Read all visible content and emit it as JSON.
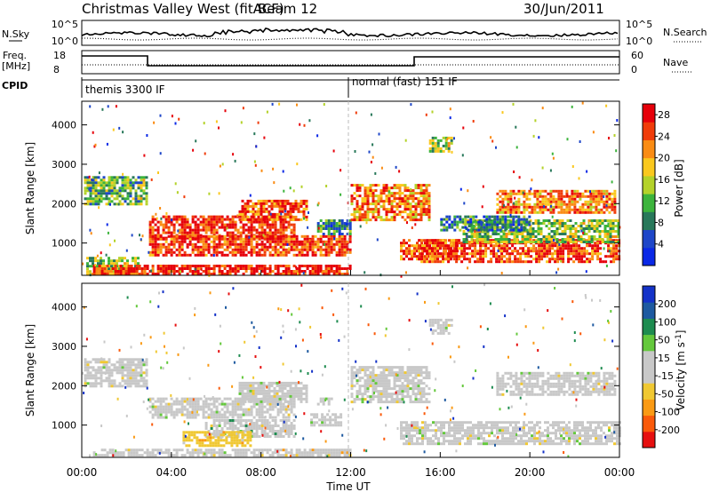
{
  "header": {
    "title": "Christmas Valley West (fitACF)",
    "beam": "Beam 12",
    "date": "30/Jun/2011"
  },
  "panels": {
    "nsky": {
      "label": "N.Sky",
      "left_ticks": [
        "10^5",
        "10^0"
      ],
      "right_ticks": [
        "10^5",
        "10^0"
      ],
      "right_label": "N.Search"
    },
    "freq": {
      "label_line1": "Freq.",
      "label_line2": "[MHz]",
      "left_ticks": [
        "18",
        "8"
      ],
      "right_ticks": [
        "60",
        "0"
      ],
      "right_label": "Nave"
    },
    "cpid": {
      "label": "CPID",
      "segments": [
        "themis 3300 IF",
        "normal (fast) 151 IF"
      ]
    }
  },
  "colors": {
    "power": [
      "#0a28e6",
      "#1e46c8",
      "#28785a",
      "#3cb43c",
      "#b4d22a",
      "#fac81e",
      "#fa8c14",
      "#f03c0a",
      "#e6000a"
    ],
    "velocity": [
      "#e61010",
      "#fa5a0a",
      "#fa9a14",
      "#f0c832",
      "#c8c8c8",
      "#c8c8c8",
      "#64c83c",
      "#1e8c50",
      "#1e5aa0",
      "#1432c8"
    ],
    "ground_scatter": "#bebebe"
  },
  "chart_data": [
    {
      "type": "heatmap",
      "name": "power",
      "ylabel": "Slant Range [km]",
      "yticks": [
        1000,
        2000,
        3000,
        4000
      ],
      "ylim": [
        180,
        4600
      ],
      "xlabel": "Time UT",
      "xticks": [
        "00:00",
        "04:00",
        "08:00",
        "12:00",
        "16:00",
        "20:00",
        "00:00"
      ],
      "xlim_hours": [
        0,
        24
      ],
      "colorbar": {
        "label": "Power [dB]",
        "ticks": [
          4,
          8,
          12,
          16,
          20,
          24,
          28
        ],
        "range": [
          0,
          30
        ]
      },
      "regions": [
        {
          "t": [
            0.1,
            2.9
          ],
          "r": [
            2000,
            2700
          ],
          "v": 12
        },
        {
          "t": [
            0.2,
            2.5
          ],
          "r": [
            200,
            650
          ],
          "v": 14
        },
        {
          "t": [
            3.0,
            9.5
          ],
          "r": [
            1150,
            1700
          ],
          "v": 27
        },
        {
          "t": [
            7.0,
            10.0
          ],
          "r": [
            1600,
            2100
          ],
          "v": 24
        },
        {
          "t": [
            3.0,
            12.0
          ],
          "r": [
            700,
            1200
          ],
          "v": 26
        },
        {
          "t": [
            0.5,
            12.0
          ],
          "r": [
            220,
            450
          ],
          "v": 28
        },
        {
          "t": [
            10.5,
            12.0
          ],
          "r": [
            1200,
            1600
          ],
          "v": 10
        },
        {
          "t": [
            12.0,
            15.5
          ],
          "r": [
            1600,
            2500
          ],
          "v": 22
        },
        {
          "t": [
            14.2,
            16.8
          ],
          "r": [
            600,
            1100
          ],
          "v": 24
        },
        {
          "t": [
            15.0,
            24.0
          ],
          "r": [
            500,
            1100
          ],
          "v": 26
        },
        {
          "t": [
            17.0,
            24.0
          ],
          "r": [
            1000,
            1600
          ],
          "v": 14
        },
        {
          "t": [
            18.5,
            23.8
          ],
          "r": [
            1800,
            2350
          ],
          "v": 22
        },
        {
          "t": [
            15.5,
            16.5
          ],
          "r": [
            3300,
            3700
          ],
          "v": 14
        },
        {
          "t": [
            16.0,
            20.0
          ],
          "r": [
            1300,
            1700
          ],
          "v": 8
        }
      ]
    },
    {
      "type": "heatmap",
      "name": "velocity",
      "ylabel": "Slant Range [km]",
      "yticks": [
        1000,
        2000,
        3000,
        4000
      ],
      "ylim": [
        180,
        4600
      ],
      "xlabel": "Time UT",
      "xticks": [
        "00:00",
        "04:00",
        "08:00",
        "12:00",
        "16:00",
        "20:00",
        "00:00"
      ],
      "xlim_hours": [
        0,
        24
      ],
      "colorbar": {
        "label": "Velocity [m s^-1]",
        "ticks": [
          -200,
          -100,
          -50,
          -15,
          15,
          50,
          100,
          200
        ],
        "range": [
          -250,
          250
        ]
      },
      "regions": [
        {
          "t": [
            0.1,
            2.9
          ],
          "r": [
            2000,
            2700
          ],
          "v": 0
        },
        {
          "t": [
            3.0,
            9.5
          ],
          "r": [
            1200,
            1700
          ],
          "v": 0
        },
        {
          "t": [
            7.0,
            10.0
          ],
          "r": [
            1600,
            2100
          ],
          "v": 0
        },
        {
          "t": [
            5.5,
            9.5
          ],
          "r": [
            700,
            1150
          ],
          "v": 35
        },
        {
          "t": [
            10.2,
            11.6
          ],
          "r": [
            1000,
            1300
          ],
          "v": 30
        },
        {
          "t": [
            10.5,
            11.2
          ],
          "r": [
            1550,
            1700
          ],
          "v": 40
        },
        {
          "t": [
            4.5,
            7.5
          ],
          "r": [
            500,
            850
          ],
          "v": -60
        },
        {
          "t": [
            0.5,
            12.0
          ],
          "r": [
            220,
            400
          ],
          "v": -35
        },
        {
          "t": [
            12.0,
            15.5
          ],
          "r": [
            1600,
            2500
          ],
          "v": 0
        },
        {
          "t": [
            14.2,
            24.0
          ],
          "r": [
            500,
            1100
          ],
          "v": 0
        },
        {
          "t": [
            18.5,
            23.8
          ],
          "r": [
            1800,
            2350
          ],
          "v": 0
        },
        {
          "t": [
            15.5,
            16.5
          ],
          "r": [
            3300,
            3700
          ],
          "v": 0
        }
      ]
    }
  ]
}
